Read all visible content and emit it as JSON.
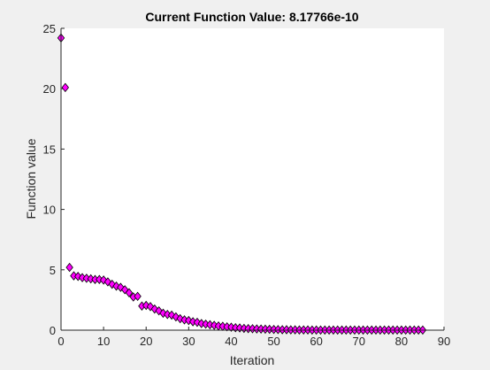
{
  "colors": {
    "figure_background": "#f0f0f0",
    "axes_background": "#ffffff",
    "axis_line": "#262626",
    "marker_fill": "#ff00ff",
    "marker_edge": "#000000"
  },
  "chart_data": {
    "type": "scatter",
    "title": "Current Function Value: 8.17766e-10",
    "xlabel": "Iteration",
    "ylabel": "Function value",
    "xlim": [
      0,
      90
    ],
    "ylim": [
      0,
      25
    ],
    "xticks": [
      0,
      10,
      20,
      30,
      40,
      50,
      60,
      70,
      80,
      90
    ],
    "yticks": [
      0,
      5,
      10,
      15,
      20,
      25
    ],
    "grid": false,
    "box": "bottom-left",
    "marker": "diamond",
    "x": [
      0,
      1,
      2,
      3,
      4,
      5,
      6,
      7,
      8,
      9,
      10,
      11,
      12,
      13,
      14,
      15,
      16,
      17,
      18,
      19,
      20,
      21,
      22,
      23,
      24,
      25,
      26,
      27,
      28,
      29,
      30,
      31,
      32,
      33,
      34,
      35,
      36,
      37,
      38,
      39,
      40,
      41,
      42,
      43,
      44,
      45,
      46,
      47,
      48,
      49,
      50,
      51,
      52,
      53,
      54,
      55,
      56,
      57,
      58,
      59,
      60,
      61,
      62,
      63,
      64,
      65,
      66,
      67,
      68,
      69,
      70,
      71,
      72,
      73,
      74,
      75,
      76,
      77,
      78,
      79,
      80,
      81,
      82,
      83,
      84,
      85
    ],
    "y": [
      24.2,
      20.1,
      5.2,
      4.5,
      4.45,
      4.35,
      4.3,
      4.25,
      4.2,
      4.2,
      4.15,
      4.0,
      3.8,
      3.65,
      3.55,
      3.35,
      3.1,
      2.75,
      2.8,
      2.0,
      2.05,
      1.95,
      1.75,
      1.6,
      1.4,
      1.3,
      1.25,
      1.1,
      0.95,
      0.85,
      0.8,
      0.7,
      0.65,
      0.55,
      0.5,
      0.45,
      0.4,
      0.35,
      0.32,
      0.28,
      0.25,
      0.2,
      0.18,
      0.15,
      0.13,
      0.12,
      0.1,
      0.09,
      0.08,
      0.07,
      0.06,
      0.05,
      0.04,
      0.04,
      0.03,
      0.03,
      0.02,
      0.02,
      0.02,
      0.01,
      0.01,
      0.01,
      0.01,
      0.01,
      0.01,
      0.01,
      0.01,
      0.01,
      0.01,
      0.01,
      0.01,
      0.01,
      0.01,
      0.01,
      0.01,
      0.01,
      0.01,
      0.01,
      0.01,
      0.01,
      0.01,
      0.01,
      0.01,
      0.01,
      0.01,
      0.01
    ]
  }
}
